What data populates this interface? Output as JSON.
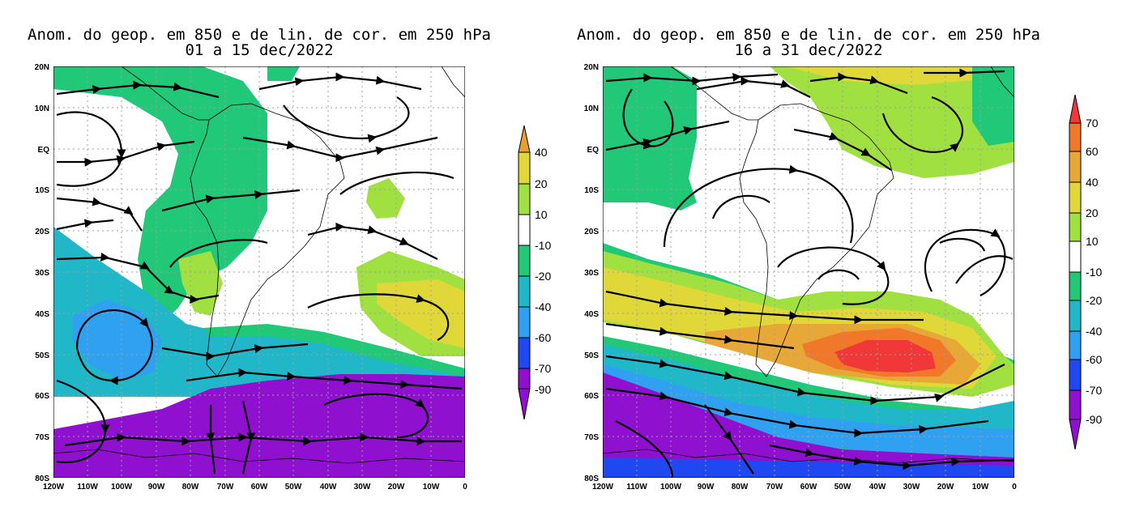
{
  "panels": [
    {
      "title_line1": "Anom. do geop. em 850 e de lin. de cor. em 250 hPa",
      "title_line2": "01 a 15 dec/2022"
    },
    {
      "title_line1": "Anom. do geop. em 850 e de lin. de cor. em 250 hPa",
      "title_line2": "16 a 31 dec/2022"
    }
  ],
  "lat_labels": [
    "20N",
    "10N",
    "EQ",
    "10S",
    "20S",
    "30S",
    "40S",
    "50S",
    "60S",
    "70S",
    "80S"
  ],
  "lon_labels": [
    "120W",
    "110W",
    "100W",
    "90W",
    "80W",
    "70W",
    "60W",
    "50W",
    "40W",
    "30W",
    "20W",
    "10W",
    "0"
  ],
  "colorbars": [
    {
      "labels": [
        "40",
        "20",
        "10",
        "-10",
        "-20",
        "-40",
        "-60",
        "-70",
        "-90"
      ],
      "colors": [
        "#E8A030",
        "#E0D838",
        "#A0E040",
        "#FFFFFF",
        "#20C878",
        "#20B8C8",
        "#30A0F0",
        "#2048F0",
        "#9010D0"
      ]
    },
    {
      "labels": [
        "70",
        "60",
        "40",
        "20",
        "10",
        "-10",
        "-20",
        "-40",
        "-60",
        "-70",
        "-90"
      ],
      "colors": [
        "#F03838",
        "#F07828",
        "#E8A838",
        "#E0D838",
        "#A0E040",
        "#FFFFFF",
        "#20C878",
        "#20B8C8",
        "#30A0F0",
        "#2048F0",
        "#9010D0"
      ]
    }
  ]
}
